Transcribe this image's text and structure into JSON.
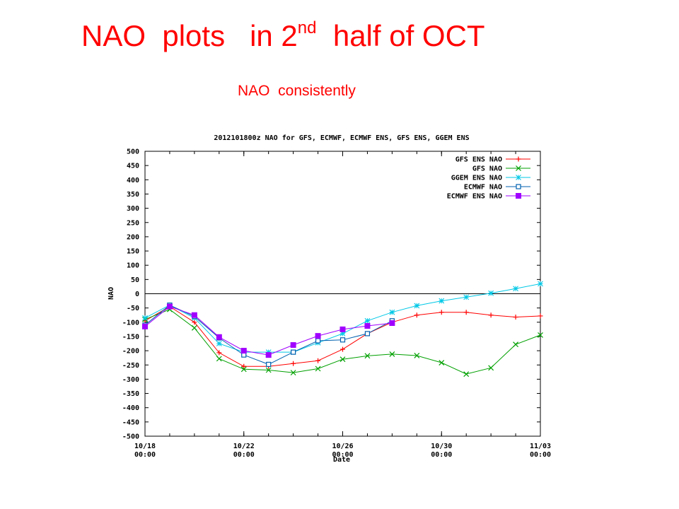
{
  "slide": {
    "title_main": "NAO  plots   in 2",
    "title_sup": "nd",
    "title_rest": "  half of OCT",
    "subtitle": "NAO  consistently"
  },
  "chart_data": {
    "type": "line",
    "title": "2012101800z NAO for GFS, ECMWF, ECMWF ENS, GFS ENS, GGEM ENS",
    "xlabel": "Date",
    "ylabel": "NAO",
    "ylim": [
      -500,
      500
    ],
    "yticks": [
      500,
      450,
      400,
      350,
      300,
      250,
      200,
      150,
      100,
      50,
      0,
      -50,
      -100,
      -150,
      -200,
      -250,
      -300,
      -350,
      -400,
      -450,
      -500
    ],
    "xlim": [
      0,
      16
    ],
    "xticks": [
      {
        "x": 0,
        "line1": "10/18",
        "line2": "00:00"
      },
      {
        "x": 4,
        "line1": "10/22",
        "line2": "00:00"
      },
      {
        "x": 8,
        "line1": "10/26",
        "line2": "00:00"
      },
      {
        "x": 12,
        "line1": "10/30",
        "line2": "00:00"
      },
      {
        "x": 16,
        "line1": "11/03",
        "line2": "00:00"
      }
    ],
    "x_unit": "days after 10/18 00:00",
    "zero_line": true,
    "legend_position": "top-right",
    "series": [
      {
        "name": "GFS ENS NAO",
        "color": "#ff0000",
        "marker": "plus",
        "x": [
          0,
          1,
          2,
          3,
          4,
          5,
          6,
          7,
          8,
          9,
          10,
          11,
          12,
          13,
          14,
          15,
          16
        ],
        "y": [
          -95,
          -45,
          -100,
          -207,
          -255,
          -255,
          -245,
          -235,
          -195,
          -140,
          -100,
          -75,
          -65,
          -65,
          -75,
          -82,
          -78
        ]
      },
      {
        "name": "GFS NAO",
        "color": "#00a000",
        "marker": "x",
        "x": [
          0,
          1,
          2,
          3,
          4,
          5,
          6,
          7,
          8,
          9,
          10,
          11,
          12,
          13,
          14,
          15,
          16
        ],
        "y": [
          -90,
          -55,
          -120,
          -228,
          -265,
          -268,
          -277,
          -263,
          -230,
          -218,
          -212,
          -217,
          -242,
          -282,
          -260,
          -178,
          -145
        ]
      },
      {
        "name": "GGEM ENS NAO",
        "color": "#00c8e6",
        "marker": "star",
        "x": [
          0,
          1,
          2,
          3,
          4,
          5,
          6,
          7,
          8,
          9,
          10,
          11,
          12,
          13,
          14,
          15,
          16
        ],
        "y": [
          -85,
          -40,
          -85,
          -175,
          -205,
          -205,
          -205,
          -172,
          -140,
          -95,
          -65,
          -42,
          -25,
          -12,
          2,
          18,
          35
        ]
      },
      {
        "name": "ECMWF NAO",
        "color": "#0060b0",
        "marker": "square-open",
        "x": [
          0,
          1,
          2,
          3,
          4,
          5,
          6,
          7,
          8,
          9,
          10
        ],
        "y": [
          -110,
          -40,
          -80,
          -155,
          -215,
          -248,
          -205,
          -165,
          -162,
          -140,
          -95
        ]
      },
      {
        "name": "ECMWF ENS NAO",
        "color": "#a000ff",
        "marker": "square-filled",
        "x": [
          0,
          1,
          2,
          3,
          4,
          5,
          6,
          7,
          8,
          9,
          10
        ],
        "y": [
          -115,
          -45,
          -75,
          -152,
          -200,
          -215,
          -180,
          -148,
          -125,
          -113,
          -103
        ]
      }
    ]
  }
}
